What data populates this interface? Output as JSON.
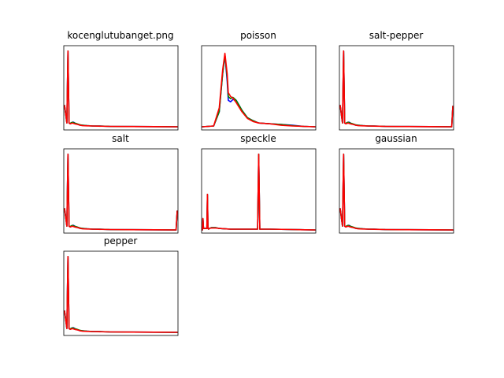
{
  "chart_data": [
    {
      "type": "line",
      "title": "kocenglutubanget.png",
      "x": [
        0,
        2,
        3,
        4,
        5,
        6,
        7,
        8,
        9,
        10,
        12,
        14,
        16,
        20,
        25,
        30,
        40,
        60,
        80,
        100
      ],
      "ylim": [
        0,
        1.05
      ],
      "series": [
        {
          "color": "#0000ff",
          "values": [
            0.28,
            0.05,
            1.0,
            0.05,
            0.04,
            0.05,
            0.06,
            0.06,
            0.05,
            0.04,
            0.03,
            0.02,
            0.02,
            0.015,
            0.01,
            0.01,
            0.005,
            0.003,
            0.002,
            0.0
          ]
        },
        {
          "color": "#008000",
          "values": [
            0.28,
            0.05,
            1.0,
            0.05,
            0.045,
            0.055,
            0.06,
            0.055,
            0.05,
            0.045,
            0.035,
            0.025,
            0.02,
            0.015,
            0.01,
            0.01,
            0.005,
            0.003,
            0.002,
            0.0
          ]
        },
        {
          "color": "#ff0000",
          "values": [
            0.28,
            0.05,
            1.0,
            0.05,
            0.04,
            0.045,
            0.05,
            0.045,
            0.04,
            0.035,
            0.03,
            0.02,
            0.015,
            0.012,
            0.01,
            0.008,
            0.005,
            0.003,
            0.002,
            0.0
          ]
        }
      ]
    },
    {
      "type": "line",
      "title": "poisson",
      "x": [
        0,
        10,
        15,
        18,
        20,
        22,
        23,
        25,
        27,
        30,
        35,
        40,
        45,
        50,
        60,
        70,
        80,
        90,
        100
      ],
      "ylim": [
        0,
        1.05
      ],
      "series": [
        {
          "color": "#0000ff",
          "values": [
            0.0,
            0.01,
            0.2,
            0.7,
            0.95,
            0.6,
            0.35,
            0.33,
            0.36,
            0.35,
            0.22,
            0.12,
            0.08,
            0.05,
            0.04,
            0.03,
            0.02,
            0.005,
            0.0
          ]
        },
        {
          "color": "#008000",
          "values": [
            0.0,
            0.01,
            0.2,
            0.7,
            0.95,
            0.65,
            0.4,
            0.37,
            0.39,
            0.35,
            0.22,
            0.12,
            0.08,
            0.05,
            0.04,
            0.03,
            0.015,
            0.005,
            0.0
          ]
        },
        {
          "color": "#ff0000",
          "values": [
            0.0,
            0.01,
            0.25,
            0.75,
            0.97,
            0.7,
            0.45,
            0.4,
            0.38,
            0.32,
            0.2,
            0.11,
            0.07,
            0.05,
            0.04,
            0.02,
            0.01,
            0.005,
            0.0
          ]
        }
      ]
    },
    {
      "type": "line",
      "title": "salt-pepper",
      "x": [
        0,
        2,
        3,
        4,
        5,
        6,
        7,
        8,
        9,
        10,
        12,
        14,
        16,
        20,
        25,
        30,
        40,
        60,
        80,
        99,
        100
      ],
      "ylim": [
        0,
        1.05
      ],
      "series": [
        {
          "color": "#0000ff",
          "values": [
            0.28,
            0.05,
            1.0,
            0.05,
            0.04,
            0.05,
            0.06,
            0.06,
            0.05,
            0.04,
            0.03,
            0.02,
            0.02,
            0.015,
            0.01,
            0.01,
            0.005,
            0.003,
            0.002,
            0.0,
            0.27
          ]
        },
        {
          "color": "#008000",
          "values": [
            0.28,
            0.05,
            1.0,
            0.05,
            0.045,
            0.055,
            0.06,
            0.055,
            0.05,
            0.045,
            0.035,
            0.025,
            0.02,
            0.015,
            0.01,
            0.01,
            0.005,
            0.003,
            0.002,
            0.0,
            0.27
          ]
        },
        {
          "color": "#ff0000",
          "values": [
            0.28,
            0.05,
            1.0,
            0.05,
            0.04,
            0.045,
            0.05,
            0.045,
            0.04,
            0.035,
            0.03,
            0.02,
            0.015,
            0.012,
            0.01,
            0.008,
            0.005,
            0.003,
            0.002,
            0.0,
            0.27
          ]
        }
      ]
    },
    {
      "type": "line",
      "title": "salt",
      "x": [
        0,
        2,
        3,
        4,
        5,
        6,
        7,
        8,
        9,
        10,
        12,
        14,
        16,
        20,
        25,
        30,
        40,
        60,
        80,
        99,
        100
      ],
      "ylim": [
        0,
        1.05
      ],
      "series": [
        {
          "color": "#0000ff",
          "values": [
            0.28,
            0.05,
            1.0,
            0.05,
            0.04,
            0.05,
            0.06,
            0.06,
            0.05,
            0.04,
            0.03,
            0.02,
            0.02,
            0.015,
            0.01,
            0.01,
            0.005,
            0.003,
            0.002,
            0.0,
            0.25
          ]
        },
        {
          "color": "#008000",
          "values": [
            0.28,
            0.05,
            1.0,
            0.05,
            0.045,
            0.055,
            0.06,
            0.055,
            0.05,
            0.045,
            0.035,
            0.025,
            0.02,
            0.015,
            0.01,
            0.01,
            0.005,
            0.003,
            0.002,
            0.0,
            0.25
          ]
        },
        {
          "color": "#ff0000",
          "values": [
            0.28,
            0.05,
            1.0,
            0.05,
            0.04,
            0.045,
            0.05,
            0.045,
            0.04,
            0.035,
            0.03,
            0.02,
            0.015,
            0.012,
            0.01,
            0.008,
            0.005,
            0.003,
            0.002,
            0.0,
            0.25
          ]
        }
      ]
    },
    {
      "type": "line",
      "title": "speckle",
      "x": [
        0,
        0.5,
        1,
        1.5,
        2,
        3,
        4,
        4.5,
        5,
        5.5,
        6,
        8,
        10,
        12,
        15,
        20,
        25,
        30,
        35,
        40,
        48,
        49,
        50,
        51,
        52,
        55,
        60,
        80,
        100
      ],
      "ylim": [
        0,
        1.05
      ],
      "series": [
        {
          "color": "#0000ff",
          "values": [
            0.0,
            0.15,
            0.02,
            0.02,
            0.02,
            0.02,
            0.02,
            0.47,
            0.02,
            0.01,
            0.02,
            0.03,
            0.03,
            0.03,
            0.02,
            0.015,
            0.01,
            0.01,
            0.01,
            0.01,
            0.01,
            0.01,
            1.0,
            0.01,
            0.01,
            0.01,
            0.01,
            0.005,
            0.0
          ]
        },
        {
          "color": "#008000",
          "values": [
            0.0,
            0.15,
            0.02,
            0.02,
            0.02,
            0.02,
            0.02,
            0.47,
            0.02,
            0.01,
            0.02,
            0.03,
            0.03,
            0.03,
            0.02,
            0.015,
            0.01,
            0.01,
            0.01,
            0.01,
            0.01,
            0.01,
            1.0,
            0.01,
            0.01,
            0.01,
            0.01,
            0.005,
            0.0
          ]
        },
        {
          "color": "#ff0000",
          "values": [
            0.0,
            0.15,
            0.02,
            0.02,
            0.02,
            0.02,
            0.02,
            0.47,
            0.02,
            0.01,
            0.02,
            0.025,
            0.025,
            0.025,
            0.02,
            0.015,
            0.01,
            0.01,
            0.01,
            0.01,
            0.01,
            0.01,
            1.0,
            0.01,
            0.01,
            0.01,
            0.01,
            0.005,
            0.0
          ]
        }
      ]
    },
    {
      "type": "line",
      "title": "gaussian",
      "x": [
        0,
        2,
        3,
        4,
        5,
        6,
        7,
        8,
        9,
        10,
        12,
        14,
        16,
        20,
        25,
        30,
        40,
        60,
        80,
        100
      ],
      "ylim": [
        0,
        1.05
      ],
      "series": [
        {
          "color": "#0000ff",
          "values": [
            0.28,
            0.05,
            1.0,
            0.05,
            0.04,
            0.05,
            0.06,
            0.06,
            0.05,
            0.04,
            0.03,
            0.02,
            0.02,
            0.015,
            0.01,
            0.01,
            0.005,
            0.003,
            0.002,
            0.0
          ]
        },
        {
          "color": "#008000",
          "values": [
            0.28,
            0.05,
            1.0,
            0.05,
            0.045,
            0.055,
            0.06,
            0.055,
            0.05,
            0.045,
            0.035,
            0.025,
            0.02,
            0.015,
            0.01,
            0.01,
            0.005,
            0.003,
            0.002,
            0.0
          ]
        },
        {
          "color": "#ff0000",
          "values": [
            0.28,
            0.05,
            1.0,
            0.05,
            0.04,
            0.045,
            0.05,
            0.045,
            0.04,
            0.035,
            0.03,
            0.02,
            0.015,
            0.012,
            0.01,
            0.008,
            0.005,
            0.003,
            0.002,
            0.0
          ]
        }
      ]
    },
    {
      "type": "line",
      "title": "pepper",
      "x": [
        0,
        2,
        3,
        4,
        5,
        6,
        7,
        8,
        9,
        10,
        12,
        14,
        16,
        20,
        25,
        30,
        40,
        60,
        80,
        100
      ],
      "ylim": [
        0,
        1.05
      ],
      "series": [
        {
          "color": "#0000ff",
          "values": [
            0.28,
            0.05,
            1.0,
            0.05,
            0.04,
            0.05,
            0.06,
            0.06,
            0.05,
            0.04,
            0.03,
            0.02,
            0.02,
            0.015,
            0.01,
            0.01,
            0.005,
            0.003,
            0.002,
            0.0
          ]
        },
        {
          "color": "#008000",
          "values": [
            0.28,
            0.05,
            1.0,
            0.05,
            0.045,
            0.055,
            0.06,
            0.055,
            0.05,
            0.045,
            0.035,
            0.025,
            0.02,
            0.015,
            0.01,
            0.01,
            0.005,
            0.003,
            0.002,
            0.0
          ]
        },
        {
          "color": "#ff0000",
          "values": [
            0.28,
            0.05,
            1.0,
            0.05,
            0.04,
            0.045,
            0.05,
            0.045,
            0.04,
            0.035,
            0.03,
            0.02,
            0.015,
            0.012,
            0.01,
            0.008,
            0.005,
            0.003,
            0.002,
            0.0
          ]
        }
      ]
    }
  ]
}
